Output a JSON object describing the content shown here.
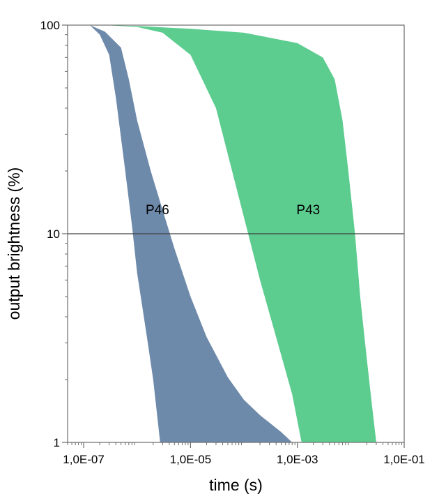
{
  "chart_data": {
    "type": "area",
    "title": "",
    "xlabel": "time (s)",
    "ylabel": "output brightness (%)",
    "x_scale": "log",
    "y_scale": "log",
    "xlim": [
      5e-08,
      0.1
    ],
    "ylim": [
      1,
      100
    ],
    "x_ticks": [
      {
        "value": 1e-07,
        "label": "1,0E-07"
      },
      {
        "value": 1e-05,
        "label": "1,0E-05"
      },
      {
        "value": 0.001,
        "label": "1,0E-03"
      },
      {
        "value": 0.1,
        "label": "1,0E-01"
      }
    ],
    "y_ticks": [
      {
        "value": 1,
        "label": "1"
      },
      {
        "value": 10,
        "label": "10"
      },
      {
        "value": 100,
        "label": "100"
      }
    ],
    "reference_line_y": 10,
    "grid": false,
    "legend": "none",
    "series": [
      {
        "name": "P46",
        "color": "#6e8aab",
        "upper": [
          [
            1.3e-07,
            100
          ],
          [
            2.5e-07,
            93
          ],
          [
            5e-07,
            78
          ],
          [
            7e-07,
            55
          ],
          [
            1e-06,
            35
          ],
          [
            1.8e-06,
            20
          ],
          [
            3e-06,
            13
          ],
          [
            5e-06,
            8.5
          ],
          [
            1e-05,
            5
          ],
          [
            2e-05,
            3.2
          ],
          [
            5e-05,
            2.05
          ],
          [
            0.0001,
            1.6
          ],
          [
            0.0002,
            1.35
          ],
          [
            0.0005,
            1.12
          ],
          [
            0.0008,
            1
          ]
        ],
        "lower": [
          [
            1.3e-07,
            100
          ],
          [
            2e-07,
            90
          ],
          [
            3e-07,
            72
          ],
          [
            4e-07,
            45
          ],
          [
            6e-07,
            20
          ],
          [
            8e-07,
            11
          ],
          [
            1e-06,
            6.5
          ],
          [
            1.5e-06,
            3.3
          ],
          [
            2e-06,
            2
          ],
          [
            2.7e-06,
            1
          ]
        ]
      },
      {
        "name": "P43",
        "color": "#5ccc8f",
        "upper": [
          [
            2.5e-07,
            100
          ],
          [
            1e-06,
            99
          ],
          [
            1e-05,
            96
          ],
          [
            0.0001,
            92
          ],
          [
            0.001,
            82
          ],
          [
            0.003,
            70
          ],
          [
            0.005,
            55
          ],
          [
            0.007,
            35
          ],
          [
            0.009,
            20
          ],
          [
            0.012,
            10
          ],
          [
            0.015,
            5
          ],
          [
            0.02,
            2.5
          ],
          [
            0.025,
            1.5
          ],
          [
            0.03,
            1
          ]
        ],
        "lower": [
          [
            2.5e-07,
            100
          ],
          [
            1e-06,
            98
          ],
          [
            3e-06,
            92
          ],
          [
            1e-05,
            72
          ],
          [
            3e-05,
            40
          ],
          [
            6e-05,
            20
          ],
          [
            0.0001,
            12
          ],
          [
            0.0002,
            6
          ],
          [
            0.0004,
            3.2
          ],
          [
            0.0008,
            1.7
          ],
          [
            0.0012,
            1
          ]
        ]
      }
    ]
  }
}
